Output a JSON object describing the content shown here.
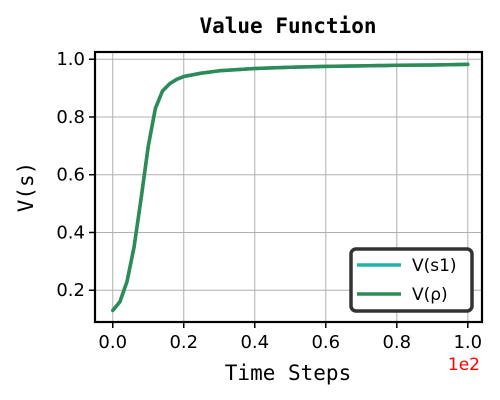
{
  "chart_data": {
    "type": "line",
    "title": "Value Function",
    "xlabel": "Time Steps",
    "ylabel": "V(s)",
    "x_offset_text": "1e2",
    "xlim": [
      -0.05,
      1.04
    ],
    "ylim": [
      0.09,
      1.025
    ],
    "xticks": [
      0.0,
      0.2,
      0.4,
      0.6,
      0.8,
      1.0
    ],
    "xtick_labels": [
      "0.0",
      "0.2",
      "0.4",
      "0.6",
      "0.8",
      "1.0"
    ],
    "yticks": [
      0.2,
      0.4,
      0.6,
      0.8,
      1.0
    ],
    "ytick_labels": [
      "0.2",
      "0.4",
      "0.6",
      "0.8",
      "1.0"
    ],
    "grid": true,
    "legend_position": "lower-right",
    "series": [
      {
        "name": "V(s1)",
        "color": "#20b2aa",
        "x": [
          0.0,
          0.02,
          0.04,
          0.06,
          0.08,
          0.1,
          0.12,
          0.14,
          0.16,
          0.18,
          0.2,
          0.25,
          0.3,
          0.4,
          0.5,
          0.6,
          0.7,
          0.8,
          0.9,
          1.0
        ],
        "y": [
          0.13,
          0.16,
          0.23,
          0.35,
          0.52,
          0.7,
          0.83,
          0.89,
          0.915,
          0.93,
          0.94,
          0.952,
          0.96,
          0.968,
          0.972,
          0.975,
          0.977,
          0.979,
          0.98,
          0.982
        ]
      },
      {
        "name": "V(ρ)",
        "color": "#2e8b57",
        "x": [
          0.0,
          0.02,
          0.04,
          0.06,
          0.08,
          0.1,
          0.12,
          0.14,
          0.16,
          0.18,
          0.2,
          0.25,
          0.3,
          0.4,
          0.5,
          0.6,
          0.7,
          0.8,
          0.9,
          1.0
        ],
        "y": [
          0.13,
          0.16,
          0.23,
          0.35,
          0.52,
          0.7,
          0.83,
          0.89,
          0.915,
          0.93,
          0.94,
          0.952,
          0.96,
          0.968,
          0.972,
          0.975,
          0.977,
          0.979,
          0.98,
          0.982
        ]
      }
    ]
  }
}
